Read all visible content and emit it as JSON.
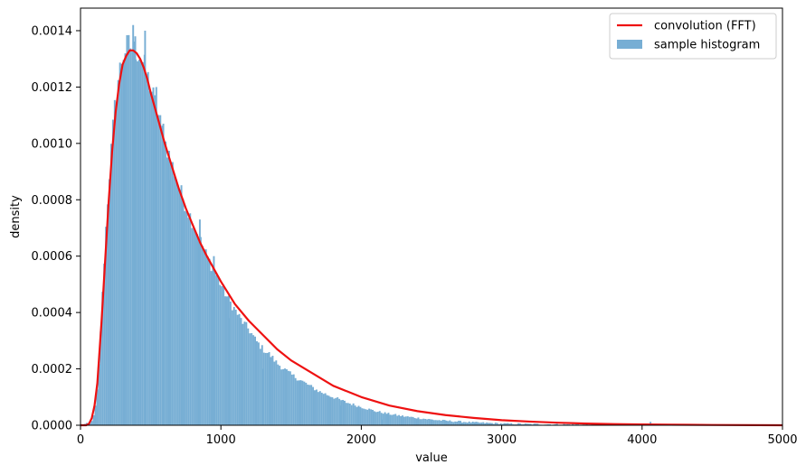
{
  "chart_data": {
    "type": "bar",
    "xlabel": "value",
    "ylabel": "density",
    "xlim": [
      0,
      5000
    ],
    "ylim": [
      0,
      0.00148
    ],
    "xticks": [
      0,
      1000,
      2000,
      3000,
      4000,
      5000
    ],
    "xtick_labels": [
      "0",
      "1000",
      "2000",
      "3000",
      "4000",
      "5000"
    ],
    "yticks": [
      0,
      0.0002,
      0.0004,
      0.0006,
      0.0008,
      0.001,
      0.0012,
      0.0014
    ],
    "ytick_labels": [
      "0.0000",
      "0.0002",
      "0.0004",
      "0.0006",
      "0.0008",
      "0.0010",
      "0.0012",
      "0.0014"
    ],
    "grid": false,
    "legend_position": "top-right",
    "legend": [
      "convolution (FFT)",
      "sample histogram"
    ],
    "colors": {
      "histogram": "#77aed4",
      "curve": "#ee1111"
    },
    "series": [
      {
        "name": "sample histogram",
        "kind": "histogram",
        "bin_width": 12.5,
        "x": [
          0,
          75,
          100,
          125,
          150,
          175,
          200,
          225,
          250,
          275,
          300,
          325,
          350,
          375,
          400,
          425,
          450,
          475,
          500,
          550,
          600,
          650,
          700,
          750,
          800,
          850,
          900,
          950,
          1000,
          1050,
          1100,
          1150,
          1200,
          1250,
          1300,
          1350,
          1400,
          1450,
          1500,
          1600,
          1700,
          1800,
          1900,
          2000,
          2100,
          2200,
          2300,
          2400,
          2500,
          2600,
          2700,
          2800,
          2900,
          3000,
          3200,
          3400,
          3600,
          3800,
          4000,
          4200,
          4400,
          4700,
          5000
        ],
        "values": [
          0.0,
          1e-05,
          4e-05,
          0.00015,
          0.0004,
          0.00065,
          0.00085,
          0.00102,
          0.00116,
          0.00125,
          0.00131,
          0.00134,
          0.00135,
          0.00133,
          0.00133,
          0.00131,
          0.00128,
          0.00124,
          0.0012,
          0.00111,
          0.00101,
          0.00093,
          0.00085,
          0.00078,
          0.00072,
          0.00066,
          0.0006,
          0.00055,
          0.0005,
          0.00045,
          0.00041,
          0.00037,
          0.00034,
          0.0003,
          0.00027,
          0.00025,
          0.00022,
          0.0002,
          0.00018,
          0.00015,
          0.00012,
          0.0001,
          8e-05,
          6.5e-05,
          5e-05,
          4e-05,
          3.2e-05,
          2.6e-05,
          2e-05,
          1.6e-05,
          1.3e-05,
          1e-05,
          8e-06,
          6e-06,
          4e-06,
          3e-06,
          2e-06,
          1.5e-06,
          1e-06,
          7e-07,
          5e-07,
          3e-07,
          2e-07
        ],
        "spikes": [
          {
            "x": 375,
            "value": 0.00142
          },
          {
            "x": 390,
            "value": 0.00138
          },
          {
            "x": 460,
            "value": 0.0014
          },
          {
            "x": 540,
            "value": 0.0012
          },
          {
            "x": 590,
            "value": 0.00107
          },
          {
            "x": 640,
            "value": 0.00087
          },
          {
            "x": 850,
            "value": 0.00073
          },
          {
            "x": 950,
            "value": 0.0006
          },
          {
            "x": 1060,
            "value": 0.00038
          },
          {
            "x": 1300,
            "value": 0.0002
          },
          {
            "x": 1350,
            "value": 0.00023
          },
          {
            "x": 1850,
            "value": 7e-05
          },
          {
            "x": 2150,
            "value": 2e-05
          },
          {
            "x": 4060,
            "value": 1.2e-05
          }
        ]
      },
      {
        "name": "convolution (FFT)",
        "kind": "line",
        "x": [
          0,
          40,
          60,
          80,
          100,
          120,
          150,
          175,
          200,
          225,
          250,
          275,
          300,
          325,
          350,
          375,
          400,
          425,
          450,
          475,
          500,
          550,
          600,
          650,
          700,
          750,
          800,
          850,
          900,
          1000,
          1100,
          1200,
          1300,
          1400,
          1500,
          1600,
          1700,
          1800,
          1900,
          2000,
          2200,
          2400,
          2600,
          2800,
          3000,
          3200,
          3400,
          3600,
          3800,
          4000,
          4200,
          4500,
          5000
        ],
        "values": [
          0.0,
          0.0,
          5e-06,
          2.5e-05,
          7e-05,
          0.00015,
          0.00037,
          0.00058,
          0.00079,
          0.00097,
          0.00111,
          0.00121,
          0.00128,
          0.00131,
          0.00133,
          0.00133,
          0.00132,
          0.0013,
          0.00127,
          0.00123,
          0.00118,
          0.00109,
          0.001,
          0.00092,
          0.00084,
          0.00077,
          0.00071,
          0.00065,
          0.0006,
          0.00051,
          0.00043,
          0.00037,
          0.00032,
          0.00027,
          0.00023,
          0.0002,
          0.00017,
          0.00014,
          0.00012,
          0.0001,
          7e-05,
          5e-05,
          3.6e-05,
          2.6e-05,
          1.8e-05,
          1.3e-05,
          9e-06,
          6e-06,
          4e-06,
          3e-06,
          2e-06,
          1e-06,
          0.0
        ]
      }
    ]
  }
}
